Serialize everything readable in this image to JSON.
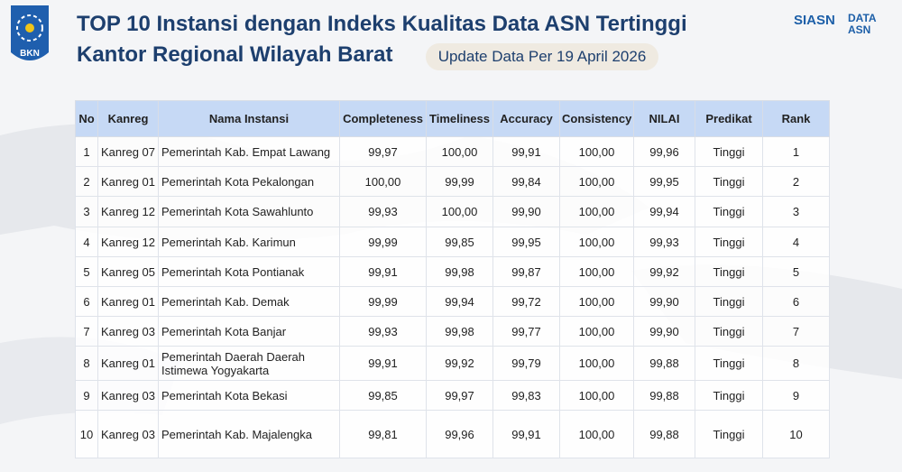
{
  "header": {
    "logo_text": "BKN",
    "title_line1": "TOP 10 Instansi dengan Indeks Kualitas Data ASN Tertinggi",
    "title_line2": "Kantor Regional Wilayah Barat",
    "update": "Update Data Per 19 April 2026",
    "brand1": "SIASN",
    "brand2": "DATA ASN"
  },
  "table": {
    "header": [
      "No",
      "Kanreg",
      "Nama Instansi",
      "Completeness",
      "Timeliness",
      "Accuracy",
      "Consistency",
      "NILAI",
      "Predikat",
      "Rank"
    ],
    "rows": [
      [
        "1",
        "Kanreg 07",
        "Pemerintah Kab. Empat Lawang",
        "99,97",
        "100,00",
        "99,91",
        "100,00",
        "99,96",
        "Tinggi",
        "1"
      ],
      [
        "2",
        "Kanreg 01",
        "Pemerintah Kota Pekalongan",
        "100,00",
        "99,99",
        "99,84",
        "100,00",
        "99,95",
        "Tinggi",
        "2"
      ],
      [
        "3",
        "Kanreg 12",
        "Pemerintah Kota Sawahlunto",
        "99,93",
        "100,00",
        "99,90",
        "100,00",
        "99,94",
        "Tinggi",
        "3"
      ],
      [
        "4",
        "Kanreg 12",
        "Pemerintah Kab. Karimun",
        "99,99",
        "99,85",
        "99,95",
        "100,00",
        "99,93",
        "Tinggi",
        "4"
      ],
      [
        "5",
        "Kanreg 05",
        "Pemerintah Kota Pontianak",
        "99,91",
        "99,98",
        "99,87",
        "100,00",
        "99,92",
        "Tinggi",
        "5"
      ],
      [
        "6",
        "Kanreg 01",
        "Pemerintah Kab. Demak",
        "99,99",
        "99,94",
        "99,72",
        "100,00",
        "99,90",
        "Tinggi",
        "6"
      ],
      [
        "7",
        "Kanreg 03",
        "Pemerintah Kota Banjar",
        "99,93",
        "99,98",
        "99,77",
        "100,00",
        "99,90",
        "Tinggi",
        "7"
      ],
      [
        "8",
        "Kanreg 01",
        "Pemerintah Daerah Daerah Istimewa Yogyakarta",
        "99,91",
        "99,92",
        "99,79",
        "100,00",
        "99,88",
        "Tinggi",
        "8"
      ],
      [
        "9",
        "Kanreg 03",
        "Pemerintah Kota Bekasi",
        "99,85",
        "99,97",
        "99,83",
        "100,00",
        "99,88",
        "Tinggi",
        "9"
      ],
      [
        "10",
        "Kanreg 03",
        "Pemerintah Kab. Majalengka",
        "99,81",
        "99,96",
        "99,91",
        "100,00",
        "99,88",
        "Tinggi",
        "10"
      ]
    ]
  }
}
